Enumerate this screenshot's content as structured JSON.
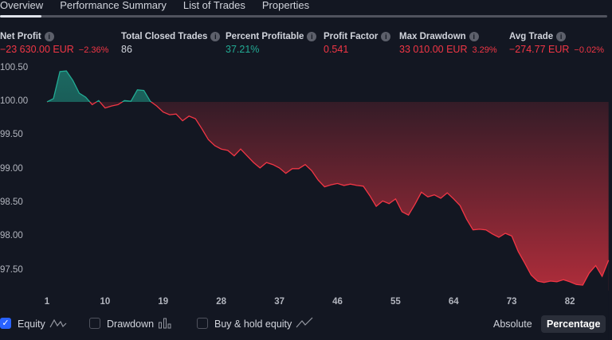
{
  "tabs": [
    "Overview",
    "Performance Summary",
    "List of Trades",
    "Properties"
  ],
  "metrics": [
    {
      "label": "Net Profit",
      "value": "−23 630.00 EUR",
      "sub": "−2.36%",
      "color": "red"
    },
    {
      "label": "Total Closed Trades",
      "value": "86",
      "sub": "",
      "color": "white"
    },
    {
      "label": "Percent Profitable",
      "value": "37.21%",
      "sub": "",
      "color": "green"
    },
    {
      "label": "Profit Factor",
      "value": "0.541",
      "sub": "",
      "color": "red"
    },
    {
      "label": "Max Drawdown",
      "value": "33 010.00 EUR",
      "sub": "3.29%",
      "color": "red"
    },
    {
      "label": "Avg Trade",
      "value": "−274.77 EUR",
      "sub": "−0.02%",
      "color": "red"
    }
  ],
  "info_icon": "i",
  "bottom": {
    "equity": "Equity",
    "drawdown": "Drawdown",
    "buyhold": "Buy & hold equity",
    "absolute": "Absolute",
    "percentage": "Percentage",
    "check": "✓"
  },
  "colors": {
    "up": "#22ab94",
    "down": "#f23645"
  },
  "chart_data": {
    "type": "area",
    "baseline": 100,
    "ylim": [
      97.2,
      100.6
    ],
    "xlim": [
      1,
      88
    ],
    "y_ticks": [
      "100.50",
      "100.00",
      "99.50",
      "99.00",
      "98.50",
      "98.00",
      "97.50"
    ],
    "x_ticks": [
      "1",
      "10",
      "19",
      "28",
      "37",
      "46",
      "55",
      "64",
      "73",
      "82"
    ],
    "values": [
      100.0,
      100.05,
      100.45,
      100.46,
      100.32,
      100.13,
      100.07,
      99.96,
      100.02,
      99.91,
      99.94,
      99.96,
      100.02,
      100.01,
      100.18,
      100.17,
      100.01,
      99.94,
      99.85,
      99.81,
      99.82,
      99.72,
      99.79,
      99.75,
      99.6,
      99.44,
      99.35,
      99.3,
      99.28,
      99.2,
      99.3,
      99.2,
      99.1,
      99.02,
      99.1,
      99.07,
      99.02,
      98.94,
      99.01,
      99.01,
      99.07,
      98.98,
      98.84,
      98.74,
      98.77,
      98.79,
      98.76,
      98.78,
      98.76,
      98.75,
      98.61,
      98.45,
      98.53,
      98.49,
      98.56,
      98.37,
      98.32,
      98.48,
      98.66,
      98.59,
      98.62,
      98.57,
      98.65,
      98.56,
      98.46,
      98.26,
      98.1,
      98.11,
      98.1,
      98.04,
      97.99,
      98.05,
      98.01,
      97.78,
      97.61,
      97.43,
      97.34,
      97.32,
      97.34,
      97.33,
      97.36,
      97.33,
      97.29,
      97.28,
      97.46,
      97.57,
      97.41,
      97.65
    ]
  }
}
